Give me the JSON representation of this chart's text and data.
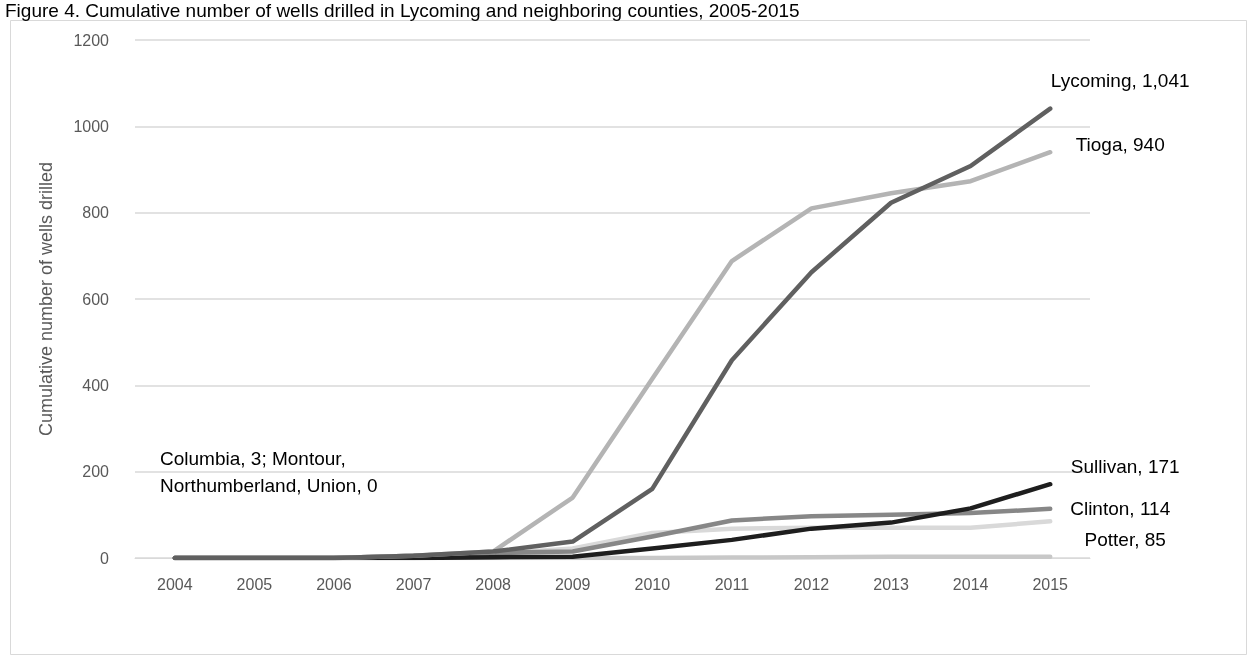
{
  "chart_data": {
    "type": "line",
    "title": "Figure 4. Cumulative number of wells drilled in Lycoming and neighboring counties, 2005-2015",
    "ylabel": "Cumulative number of wells drilled",
    "categories": [
      "2004",
      "2005",
      "2006",
      "2007",
      "2008",
      "2009",
      "2010",
      "2011",
      "2012",
      "2013",
      "2014",
      "2015"
    ],
    "series": [
      {
        "color": "#c8c8c8",
        "values": [
          0,
          0,
          0,
          0,
          0,
          0,
          0,
          1,
          2,
          3,
          3,
          3
        ]
      },
      {
        "color": "#d9d9d9",
        "values": [
          0,
          0,
          0,
          5,
          10,
          22,
          58,
          68,
          70,
          70,
          70,
          85
        ],
        "value_labels": [
          null,
          null,
          null,
          null,
          null,
          null,
          null,
          null,
          null,
          null,
          null,
          "Potter, 85"
        ]
      },
      {
        "color": "#878787",
        "values": [
          0,
          0,
          0,
          5,
          12,
          15,
          50,
          87,
          97,
          100,
          104,
          114
        ],
        "value_labels": [
          null,
          null,
          null,
          null,
          null,
          null,
          null,
          null,
          null,
          null,
          null,
          "Clinton, 114"
        ]
      },
      {
        "color": "#1e1e1e",
        "values": [
          0,
          0,
          0,
          0,
          2,
          3,
          22,
          42,
          68,
          82,
          115,
          171
        ],
        "value_labels": [
          null,
          null,
          null,
          null,
          null,
          null,
          null,
          null,
          null,
          null,
          null,
          "Sullivan, 171"
        ]
      },
      {
        "color": "#b4b4b4",
        "values": [
          0,
          0,
          0,
          5,
          15,
          140,
          415,
          688,
          810,
          845,
          873,
          940
        ],
        "value_labels": [
          null,
          null,
          null,
          null,
          null,
          null,
          null,
          null,
          null,
          null,
          null,
          "Tioga, 940"
        ]
      },
      {
        "color": "#606060",
        "values": [
          0,
          0,
          0,
          5,
          15,
          38,
          160,
          458,
          662,
          823,
          908,
          1041
        ],
        "value_labels": [
          null,
          null,
          null,
          null,
          null,
          null,
          null,
          null,
          null,
          null,
          null,
          "Lycoming, 1,041"
        ]
      }
    ],
    "annotations": [
      "Columbia, 3; Montour,\nNorthumberland, Union, 0"
    ],
    "ylim": [
      0,
      1200
    ],
    "yticks": [
      0,
      200,
      400,
      600,
      800,
      1000,
      1200
    ],
    "grid": "y",
    "marker": "none",
    "line_style": "solid"
  }
}
